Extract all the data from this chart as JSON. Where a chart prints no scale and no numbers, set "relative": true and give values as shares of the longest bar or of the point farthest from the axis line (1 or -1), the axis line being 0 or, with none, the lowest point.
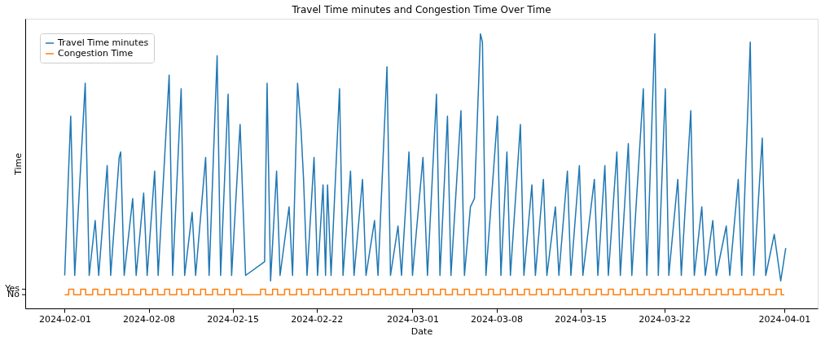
{
  "chart_data": {
    "type": "line",
    "title": "Travel Time minutes and Congestion Time Over Time",
    "xlabel": "Date",
    "ylabel": "Time",
    "xlim": [
      "2024-01-28T17:00",
      "2024-04-03T19:00"
    ],
    "relative": true,
    "xticks": [
      "2024-02-01",
      "2024-02-08",
      "2024-02-15",
      "2024-02-22",
      "2024-03-01",
      "2024-03-08",
      "2024-03-15",
      "2024-03-22",
      "2024-04-01"
    ],
    "annotations": [
      "No",
      "Yes"
    ],
    "grid": false,
    "legend": "top left",
    "series": [
      {
        "name": "Travel Time minutes",
        "type": "line",
        "color": "#1f77b4",
        "x": [
          "2024-02-01T00:00",
          "2024-02-01T05:00",
          "2024-02-01T12:00",
          "2024-02-01T20:00",
          "2024-02-02T08:00",
          "2024-02-02T17:00",
          "2024-02-03T01:00",
          "2024-02-03T13:00",
          "2024-02-03T20:00",
          "2024-02-04T13:00",
          "2024-02-04T20:00",
          "2024-02-05T13:00",
          "2024-02-05T16:00",
          "2024-02-05T23:00",
          "2024-02-06T16:00",
          "2024-02-06T23:00",
          "2024-02-07T14:00",
          "2024-02-07T21:00",
          "2024-02-08T12:00",
          "2024-02-08T19:00",
          "2024-02-09T17:00",
          "2024-02-10T00:00",
          "2024-02-10T17:00",
          "2024-02-11T00:00",
          "2024-02-11T15:00",
          "2024-02-11T22:00",
          "2024-02-12T18:00",
          "2024-02-13T01:00",
          "2024-02-13T17:00",
          "2024-02-14T00:00",
          "2024-02-14T15:00",
          "2024-02-14T22:00",
          "2024-02-15T15:00",
          "2024-02-16T02:00",
          "2024-02-17T16:00",
          "2024-02-17T21:00",
          "2024-02-18T04:00",
          "2024-02-18T16:00",
          "2024-02-18T23:00",
          "2024-02-19T17:00",
          "2024-02-20T00:00",
          "2024-02-20T10:00",
          "2024-02-20T17:00",
          "2024-02-20T22:00",
          "2024-02-21T05:00",
          "2024-02-21T19:00",
          "2024-02-22T02:00",
          "2024-02-22T13:00",
          "2024-02-22T18:00",
          "2024-02-22T22:00",
          "2024-02-23T05:00",
          "2024-02-23T22:00",
          "2024-02-24T05:00",
          "2024-02-24T20:00",
          "2024-02-25T03:00",
          "2024-02-25T20:00",
          "2024-02-26T03:00",
          "2024-02-26T20:00",
          "2024-02-27T03:00",
          "2024-02-27T21:00",
          "2024-02-28T04:00",
          "2024-02-28T19:00",
          "2024-02-29T02:00",
          "2024-02-29T17:00",
          "2024-03-01T00:00",
          "2024-03-01T21:00",
          "2024-03-02T06:00",
          "2024-03-03T00:00",
          "2024-03-03T07:00",
          "2024-03-03T22:00",
          "2024-03-04T05:00",
          "2024-03-05T01:00",
          "2024-03-05T08:00",
          "2024-03-05T20:00",
          "2024-03-06T04:00",
          "2024-03-06T16:00",
          "2024-03-06T20:00",
          "2024-03-07T03:00",
          "2024-03-08T02:00",
          "2024-03-08T09:00",
          "2024-03-08T21:00",
          "2024-03-09T04:00",
          "2024-03-10T00:00",
          "2024-03-10T07:00",
          "2024-03-10T23:00",
          "2024-03-11T06:00",
          "2024-03-11T22:00",
          "2024-03-12T05:00",
          "2024-03-12T22:00",
          "2024-03-13T05:00",
          "2024-03-13T22:00",
          "2024-03-14T05:00",
          "2024-03-14T22:00",
          "2024-03-15T05:00",
          "2024-03-16T04:00",
          "2024-03-16T11:00",
          "2024-03-17T01:00",
          "2024-03-17T08:00",
          "2024-03-18T01:00",
          "2024-03-18T08:00",
          "2024-03-19T00:00",
          "2024-03-19T07:00",
          "2024-03-20T06:00",
          "2024-03-20T13:00",
          "2024-03-21T05:00",
          "2024-03-21T12:00",
          "2024-03-22T02:00",
          "2024-03-22T09:00",
          "2024-03-23T03:00",
          "2024-03-23T10:00",
          "2024-03-24T05:00",
          "2024-03-24T12:00",
          "2024-03-25T03:00",
          "2024-03-25T10:00",
          "2024-03-26T01:00",
          "2024-03-26T08:00",
          "2024-03-27T04:00",
          "2024-03-27T11:00",
          "2024-03-28T04:00",
          "2024-03-28T11:00",
          "2024-03-29T04:00",
          "2024-03-29T11:00",
          "2024-03-30T04:00",
          "2024-03-30T11:00",
          "2024-03-31T04:00",
          "2024-03-31T17:00",
          "2024-04-01T03:00"
        ],
        "values": [
          0.12,
          0.37,
          0.7,
          0.12,
          0.52,
          0.82,
          0.12,
          0.32,
          0.12,
          0.52,
          0.12,
          0.55,
          0.57,
          0.12,
          0.4,
          0.12,
          0.42,
          0.12,
          0.5,
          0.12,
          0.85,
          0.12,
          0.8,
          0.12,
          0.35,
          0.12,
          0.55,
          0.12,
          0.92,
          0.12,
          0.78,
          0.12,
          0.67,
          0.12,
          0.17,
          0.82,
          0.1,
          0.5,
          0.12,
          0.37,
          0.12,
          0.82,
          0.65,
          0.47,
          0.12,
          0.55,
          0.12,
          0.45,
          0.12,
          0.45,
          0.12,
          0.8,
          0.12,
          0.5,
          0.12,
          0.47,
          0.12,
          0.32,
          0.12,
          0.88,
          0.12,
          0.3,
          0.12,
          0.57,
          0.12,
          0.55,
          0.12,
          0.78,
          0.12,
          0.7,
          0.12,
          0.72,
          0.12,
          0.37,
          0.4,
          1,
          0.97,
          0.12,
          0.7,
          0.12,
          0.57,
          0.12,
          0.67,
          0.12,
          0.45,
          0.12,
          0.47,
          0.12,
          0.37,
          0.12,
          0.5,
          0.12,
          0.52,
          0.12,
          0.47,
          0.12,
          0.52,
          0.12,
          0.57,
          0.12,
          0.6,
          0.12,
          0.8,
          0.12,
          1,
          0.12,
          0.8,
          0.12,
          0.47,
          0.12,
          0.72,
          0.12,
          0.37,
          0.12,
          0.32,
          0.12,
          0.3,
          0.12,
          0.47,
          0.12,
          0.97,
          0.12,
          0.62,
          0.12,
          0.27,
          0.1,
          0.22
        ]
      },
      {
        "name": "Congestion Time",
        "type": "step",
        "color": "#ff7f0e",
        "x": [
          "2024-02-01T00:00",
          "2024-02-01T08:00",
          "2024-02-01T18:00",
          "2024-02-02T08:00",
          "2024-02-02T18:00",
          "2024-02-03T08:00",
          "2024-02-03T18:00",
          "2024-02-04T08:00",
          "2024-02-04T18:00",
          "2024-02-05T08:00",
          "2024-02-05T18:00",
          "2024-02-06T08:00",
          "2024-02-06T18:00",
          "2024-02-07T08:00",
          "2024-02-07T18:00",
          "2024-02-08T08:00",
          "2024-02-08T18:00",
          "2024-02-09T08:00",
          "2024-02-09T18:00",
          "2024-02-10T08:00",
          "2024-02-10T18:00",
          "2024-02-11T08:00",
          "2024-02-11T18:00",
          "2024-02-12T08:00",
          "2024-02-12T18:00",
          "2024-02-13T08:00",
          "2024-02-13T18:00",
          "2024-02-14T08:00",
          "2024-02-14T18:00",
          "2024-02-15T08:00",
          "2024-02-15T18:00",
          "2024-02-17T08:00",
          "2024-02-17T18:00",
          "2024-02-18T08:00",
          "2024-02-18T18:00",
          "2024-02-19T08:00",
          "2024-02-19T18:00",
          "2024-02-20T08:00",
          "2024-02-20T18:00",
          "2024-02-21T08:00",
          "2024-02-21T18:00",
          "2024-02-22T08:00",
          "2024-02-22T18:00",
          "2024-02-23T08:00",
          "2024-02-23T18:00",
          "2024-02-24T08:00",
          "2024-02-24T18:00",
          "2024-02-25T08:00",
          "2024-02-25T18:00",
          "2024-02-26T08:00",
          "2024-02-26T18:00",
          "2024-02-27T08:00",
          "2024-02-27T18:00",
          "2024-02-28T08:00",
          "2024-02-28T18:00",
          "2024-02-29T08:00",
          "2024-02-29T18:00",
          "2024-03-01T08:00",
          "2024-03-01T18:00",
          "2024-03-02T08:00",
          "2024-03-02T18:00",
          "2024-03-03T08:00",
          "2024-03-03T18:00",
          "2024-03-04T08:00",
          "2024-03-04T18:00",
          "2024-03-05T08:00",
          "2024-03-05T18:00",
          "2024-03-06T08:00",
          "2024-03-06T18:00",
          "2024-03-07T08:00",
          "2024-03-07T18:00",
          "2024-03-08T08:00",
          "2024-03-08T18:00",
          "2024-03-09T08:00",
          "2024-03-09T18:00",
          "2024-03-10T08:00",
          "2024-03-10T18:00",
          "2024-03-11T08:00",
          "2024-03-11T18:00",
          "2024-03-12T08:00",
          "2024-03-12T18:00",
          "2024-03-13T08:00",
          "2024-03-13T18:00",
          "2024-03-14T08:00",
          "2024-03-14T18:00",
          "2024-03-15T08:00",
          "2024-03-15T18:00",
          "2024-03-16T08:00",
          "2024-03-16T18:00",
          "2024-03-17T08:00",
          "2024-03-17T18:00",
          "2024-03-18T08:00",
          "2024-03-18T18:00",
          "2024-03-19T08:00",
          "2024-03-19T18:00",
          "2024-03-20T08:00",
          "2024-03-20T18:00",
          "2024-03-21T08:00",
          "2024-03-21T18:00",
          "2024-03-22T08:00",
          "2024-03-22T18:00",
          "2024-03-23T08:00",
          "2024-03-23T18:00",
          "2024-03-24T08:00",
          "2024-03-24T18:00",
          "2024-03-25T08:00",
          "2024-03-25T18:00",
          "2024-03-26T08:00",
          "2024-03-26T18:00",
          "2024-03-27T08:00",
          "2024-03-27T18:00",
          "2024-03-28T08:00",
          "2024-03-28T18:00",
          "2024-03-29T08:00",
          "2024-03-29T18:00",
          "2024-03-30T08:00",
          "2024-03-30T18:00",
          "2024-03-31T08:00",
          "2024-03-31T18:00",
          "2024-04-01T00:00"
        ],
        "values": [
          0.05,
          0.07,
          0.05,
          0.07,
          0.05,
          0.07,
          0.05,
          0.07,
          0.05,
          0.07,
          0.05,
          0.07,
          0.05,
          0.07,
          0.05,
          0.07,
          0.05,
          0.07,
          0.05,
          0.07,
          0.05,
          0.07,
          0.05,
          0.07,
          0.05,
          0.07,
          0.05,
          0.07,
          0.05,
          0.07,
          0.05,
          0.07,
          0.05,
          0.07,
          0.05,
          0.07,
          0.05,
          0.07,
          0.05,
          0.07,
          0.05,
          0.07,
          0.05,
          0.07,
          0.05,
          0.07,
          0.05,
          0.07,
          0.05,
          0.07,
          0.05,
          0.07,
          0.05,
          0.07,
          0.05,
          0.07,
          0.05,
          0.07,
          0.05,
          0.07,
          0.05,
          0.07,
          0.05,
          0.07,
          0.05,
          0.07,
          0.05,
          0.07,
          0.05,
          0.07,
          0.05,
          0.07,
          0.05,
          0.07,
          0.05,
          0.07,
          0.05,
          0.07,
          0.05,
          0.07,
          0.05,
          0.07,
          0.05,
          0.07,
          0.05,
          0.07,
          0.05,
          0.07,
          0.05,
          0.07,
          0.05,
          0.07,
          0.05,
          0.07,
          0.05,
          0.07,
          0.05,
          0.07,
          0.05,
          0.07,
          0.05,
          0.07,
          0.05,
          0.07,
          0.05,
          0.07,
          0.05,
          0.07,
          0.05,
          0.07,
          0.05,
          0.07,
          0.05,
          0.07,
          0.05,
          0.07,
          0.05,
          0.07,
          0.05,
          0.05
        ]
      }
    ]
  }
}
